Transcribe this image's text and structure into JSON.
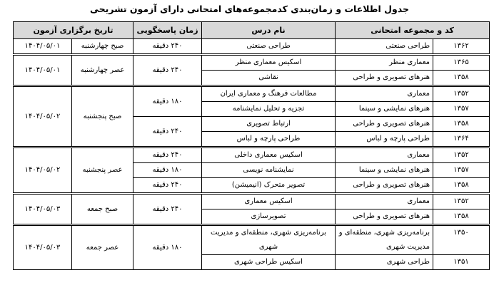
{
  "title": "جدول اطلاعات و زمان‌بندی کدمجموعه‌های امتحانی دارای آزمون تشریحی",
  "headers": {
    "group": "کد و مجموعه امتحانی",
    "lesson": "نام درس",
    "duration": "زمان پاسخگویی",
    "date": "تاریخ برگزاری آزمون"
  },
  "groups": [
    {
      "day": "صبح چهارشنبه",
      "date": "۱۴۰۴/۰۵/۰۱",
      "durations": [
        {
          "duration": "۲۴۰ دقیقه",
          "items": [
            {
              "code": "۱۳۶۲",
              "group": "طراحی صنعتی",
              "lesson": "طراحی صنعتی"
            }
          ]
        }
      ]
    },
    {
      "day": "عصر چهارشنبه",
      "date": "۱۴۰۴/۰۵/۰۱",
      "durations": [
        {
          "duration": "۲۴۰ دقیقه",
          "items": [
            {
              "code": "۱۳۶۵",
              "group": "معماری منظر",
              "lesson": "اسکیس معماری منظر"
            },
            {
              "code": "۱۳۵۸",
              "group": "هنرهای تصویری و طراحی",
              "lesson": "نقاشی"
            }
          ]
        }
      ]
    },
    {
      "day": "صبح پنجشنبه",
      "date": "۱۴۰۴/۰۵/۰۲",
      "durations": [
        {
          "duration": "۱۸۰ دقیقه",
          "items": [
            {
              "code": "۱۳۵۲",
              "group": "معماری",
              "lesson": "مطالعات فرهنگ و معماری ایران"
            },
            {
              "code": "۱۳۵۷",
              "group": "هنرهای نمایشی و سینما",
              "lesson": "تجزیه و تحلیل نمایشنامه"
            }
          ]
        },
        {
          "duration": "۲۴۰ دقیقه",
          "items": [
            {
              "code": "۱۳۵۸",
              "group": "هنرهای تصویری و طراحی",
              "lesson": "ارتباط تصویری"
            },
            {
              "code": "۱۳۶۴",
              "group": "طراحی پارچه و لباس",
              "lesson": "طراحی پارچه و لباس"
            }
          ]
        }
      ]
    },
    {
      "day": "عصر پنجشنبه",
      "date": "۱۴۰۴/۰۵/۰۲",
      "durations": [
        {
          "duration": "۲۴۰ دقیقه",
          "items": [
            {
              "code": "۱۳۵۲",
              "group": "معماری",
              "lesson": "اسکیس معماری داخلی"
            }
          ]
        },
        {
          "duration": "۱۸۰ دقیقه",
          "items": [
            {
              "code": "۱۳۵۷",
              "group": "هنرهای نمایشی و سینما",
              "lesson": "نمایشنامه نویسی"
            }
          ]
        },
        {
          "duration": "۲۴۰ دقیقه",
          "items": [
            {
              "code": "۱۳۵۸",
              "group": "هنرهای تصویری و طراحی",
              "lesson": "تصویر متحرک (انیمیشن)"
            }
          ]
        }
      ]
    },
    {
      "day": "صبح جمعه",
      "date": "۱۴۰۴/۰۵/۰۳",
      "durations": [
        {
          "duration": "۲۴۰ دقیقه",
          "items": [
            {
              "code": "۱۳۵۲",
              "group": "معماری",
              "lesson": "اسکیس معماری"
            },
            {
              "code": "۱۳۵۸",
              "group": "هنرهای تصویری و طراحی",
              "lesson": "تصویرسازی"
            }
          ]
        }
      ]
    },
    {
      "day": "عصر جمعه",
      "date": "۱۴۰۴/۰۵/۰۳",
      "durations": [
        {
          "duration": "۱۸۰ دقیقه",
          "items": [
            {
              "code": "۱۳۵۰",
              "group": "برنامه‌ریزی شهری، منطقه‌ای و مدیریت شهری",
              "lesson": "برنامه‌ریزی شهری، منطقه‌ای و مدیریت شهری"
            },
            {
              "code": "۱۳۵۱",
              "group": "طراحی شهری",
              "lesson": "اسکیس طراحی شهری"
            }
          ]
        }
      ]
    }
  ]
}
